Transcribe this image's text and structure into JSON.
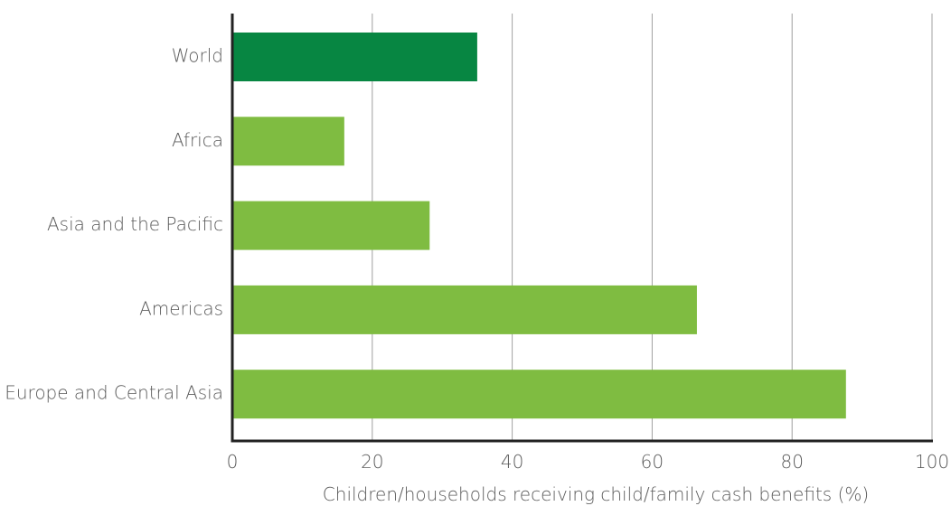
{
  "chart_data": {
    "type": "bar",
    "orientation": "horizontal",
    "categories": [
      "World",
      "Africa",
      "Asia and the Pacific",
      "Americas",
      "Europe and Central Asia"
    ],
    "values": [
      35,
      16,
      28.2,
      66.4,
      87.7
    ],
    "xlabel": "Children/households receiving child/family cash benefits (%)",
    "ylabel": "",
    "xlim": [
      0,
      100
    ],
    "xticks": [
      0,
      20,
      40,
      60,
      80,
      100
    ],
    "grid": "vertical",
    "legend": "none",
    "colors": {
      "highlight": "#078642",
      "default": "#7fbc41",
      "grid": "#a0a0a0",
      "axis": "#222222",
      "text": "#5a5a5a"
    },
    "highlight_category": "World"
  }
}
